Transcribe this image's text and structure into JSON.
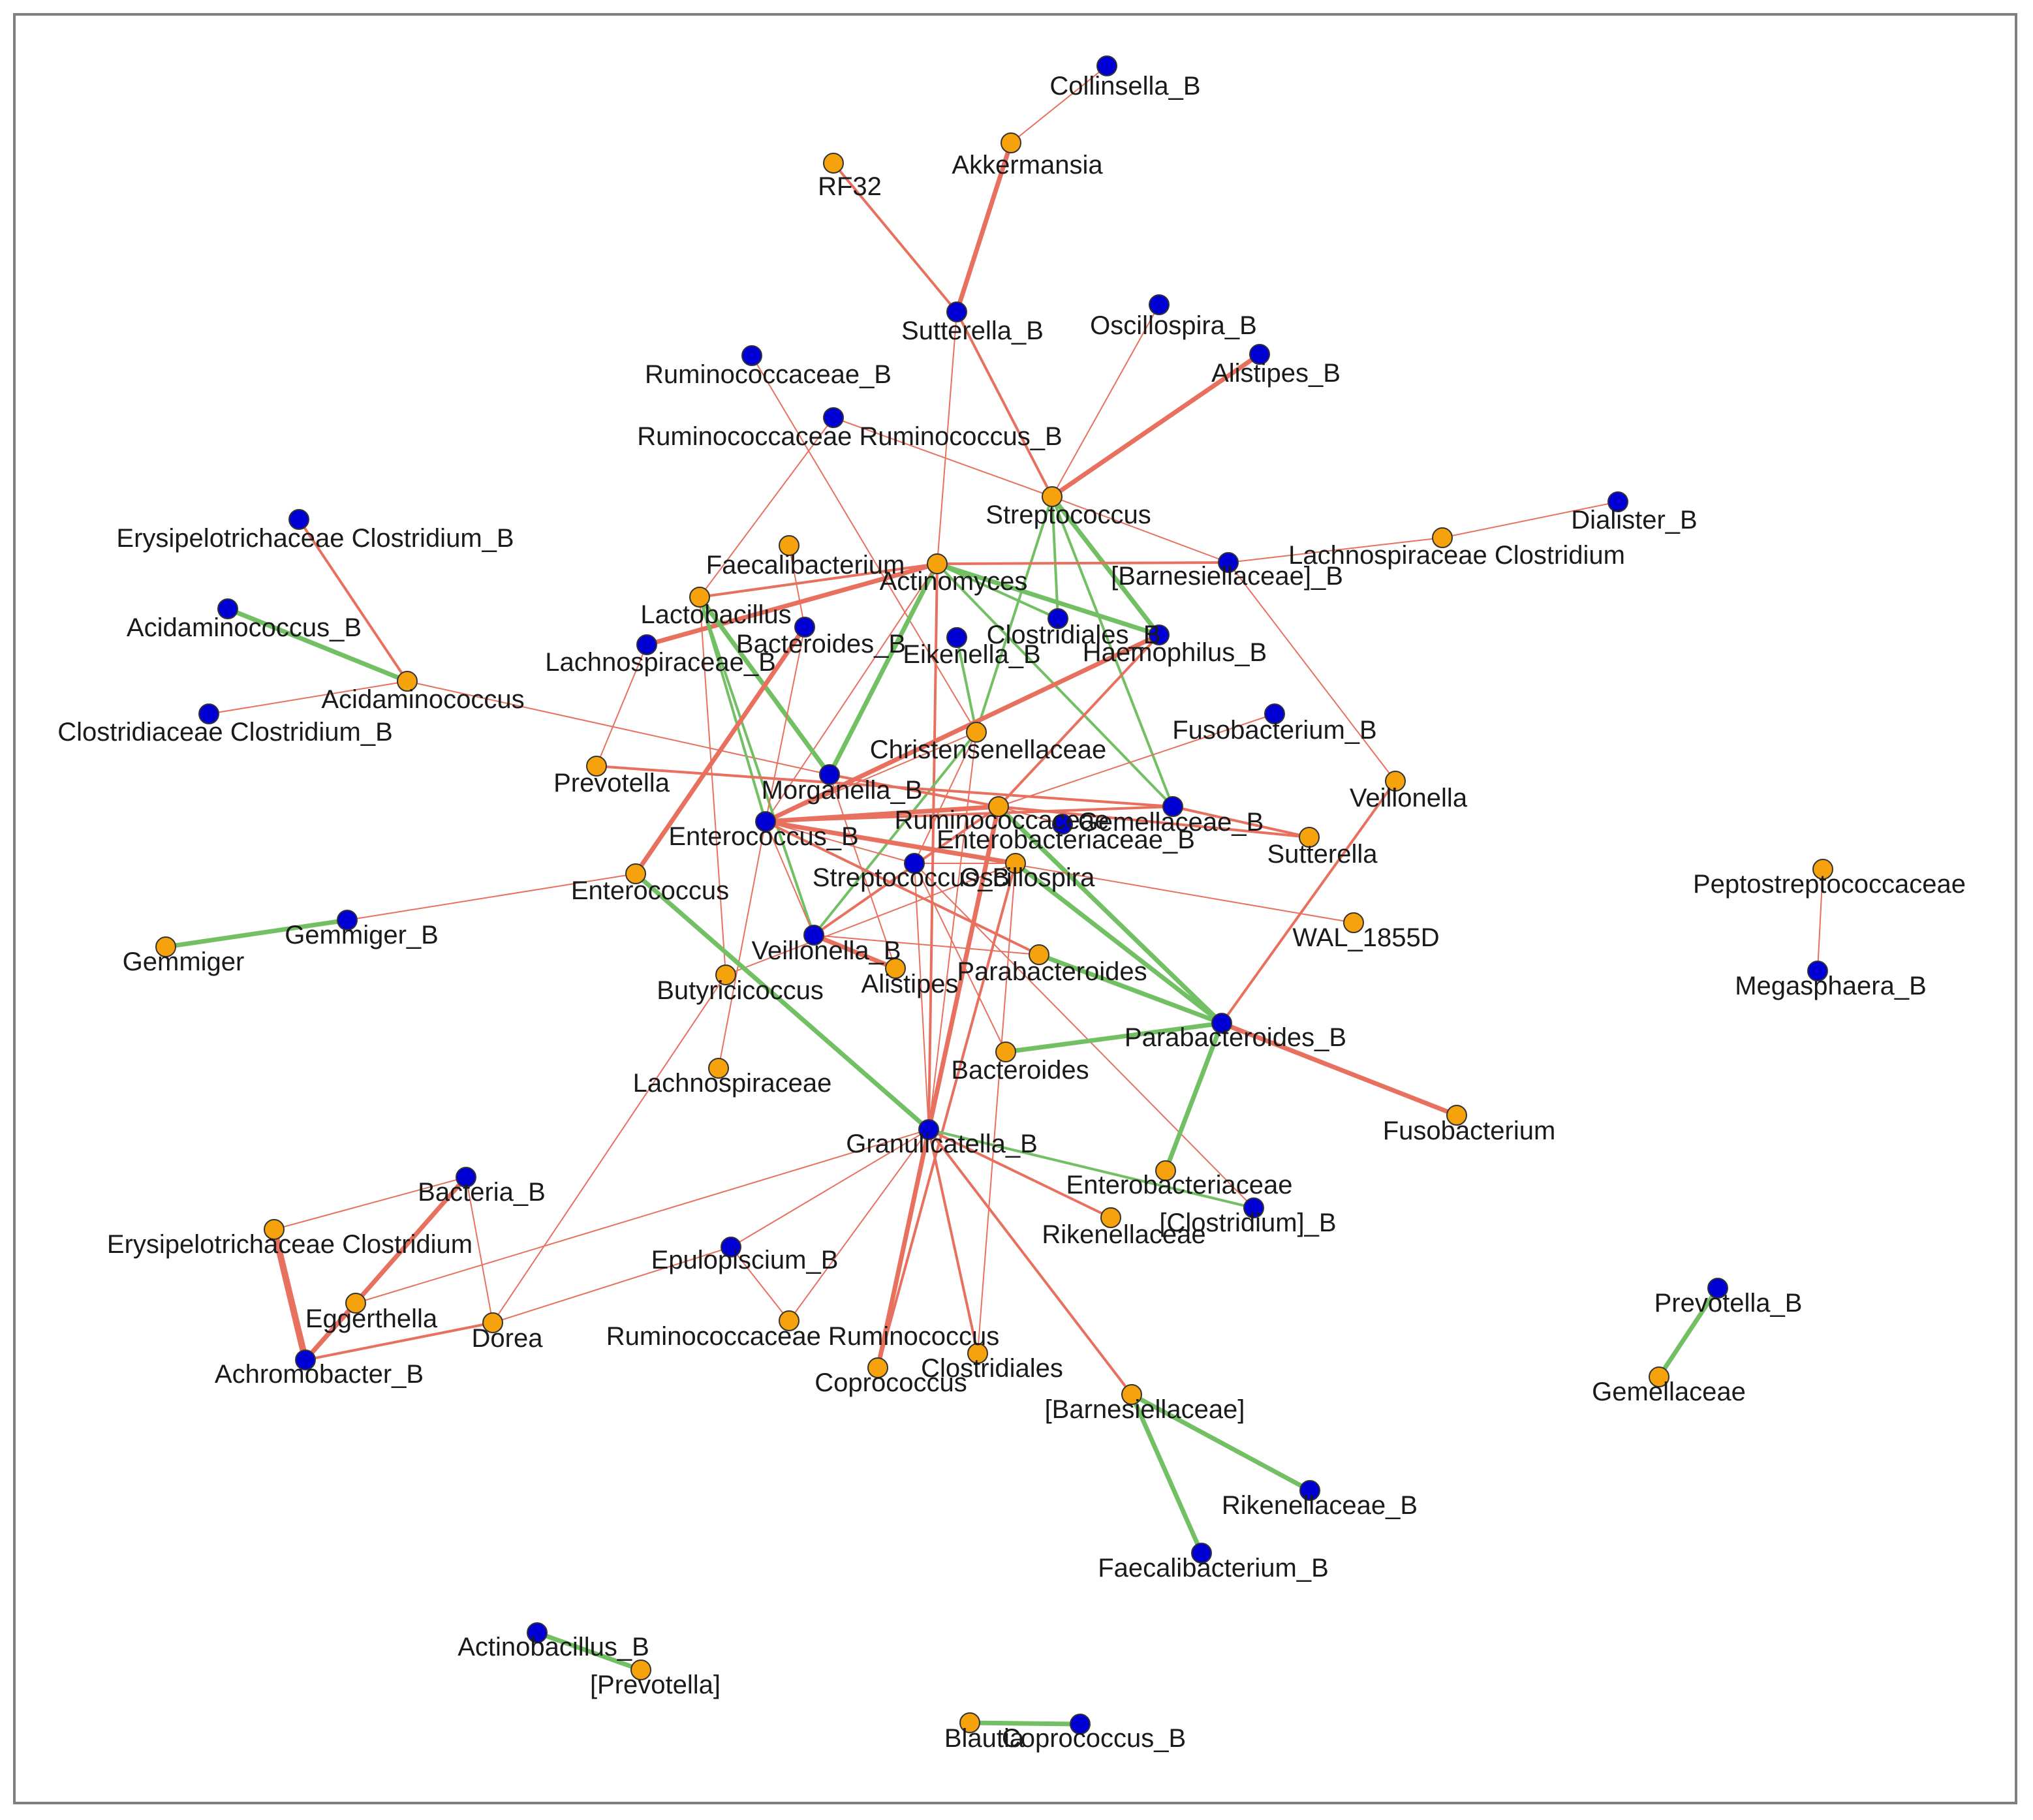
{
  "colors": {
    "positive": "#e8705f",
    "negative": "#72bf64",
    "group_A": "#f5a20c",
    "group_B": "#0000d4",
    "frame": "#808080"
  },
  "nodes": [
    {
      "id": "collinsella_b",
      "label": "Collinsella_B",
      "group": "B"
    },
    {
      "id": "akkermansia",
      "label": "Akkermansia",
      "group": "A"
    },
    {
      "id": "rf32",
      "label": "RF32",
      "group": "A"
    },
    {
      "id": "sutterella_b",
      "label": "Sutterella_B",
      "group": "B"
    },
    {
      "id": "oscillospira_b",
      "label": "Oscillospira_B",
      "group": "B"
    },
    {
      "id": "alistipes_b",
      "label": "Alistipes_B",
      "group": "B"
    },
    {
      "id": "ruminococcaceae_b",
      "label": "Ruminococcaceae_B",
      "group": "B"
    },
    {
      "id": "ruminococcaceae_ruminococcus_b",
      "label": "Ruminococcaceae Ruminococcus_B",
      "group": "B"
    },
    {
      "id": "streptococcus",
      "label": "Streptococcus",
      "group": "A"
    },
    {
      "id": "dialister_b",
      "label": "Dialister_B",
      "group": "B"
    },
    {
      "id": "lachnospiraceae_clostridium",
      "label": "Lachnospiraceae Clostridium",
      "group": "A"
    },
    {
      "id": "barnesiellaceae_b",
      "label": "[Barnesiellaceae]_B",
      "group": "B"
    },
    {
      "id": "erysipelotrichaceae_clostridium_b",
      "label": "Erysipelotrichaceae Clostridium_B",
      "group": "B"
    },
    {
      "id": "faecalibacterium",
      "label": "Faecalibacterium",
      "group": "A"
    },
    {
      "id": "actinomyces",
      "label": "Actinomyces",
      "group": "A"
    },
    {
      "id": "acidaminococcus_b",
      "label": "Acidaminococcus_B",
      "group": "B"
    },
    {
      "id": "lactobacillus",
      "label": "Lactobacillus",
      "group": "A"
    },
    {
      "id": "bacteroides_b",
      "label": "Bacteroides_B",
      "group": "B"
    },
    {
      "id": "clostridiales_b",
      "label": "Clostridiales_B",
      "group": "B"
    },
    {
      "id": "eikenella_b",
      "label": "Eikenella_B",
      "group": "B"
    },
    {
      "id": "haemophilus_b",
      "label": "Haemophilus_B",
      "group": "B"
    },
    {
      "id": "lachnospiraceae_b",
      "label": "Lachnospiraceae_B",
      "group": "B"
    },
    {
      "id": "acidaminococcus",
      "label": "Acidaminococcus",
      "group": "A"
    },
    {
      "id": "clostridiaceae_clostridium_b",
      "label": "Clostridiaceae Clostridium_B",
      "group": "B"
    },
    {
      "id": "fusobacterium_b",
      "label": "Fusobacterium_B",
      "group": "B"
    },
    {
      "id": "christensenellaceae",
      "label": "Christensenellaceae",
      "group": "A"
    },
    {
      "id": "prevotella",
      "label": "Prevotella",
      "group": "A"
    },
    {
      "id": "morganella_b",
      "label": "Morganella_B",
      "group": "B"
    },
    {
      "id": "veillonella",
      "label": "Veillonella",
      "group": "A"
    },
    {
      "id": "ruminococcaceae",
      "label": "Ruminococcaceae",
      "group": "A"
    },
    {
      "id": "gemellaceae_b",
      "label": "Gemellaceae_B",
      "group": "B"
    },
    {
      "id": "sutterella",
      "label": "Sutterella",
      "group": "A"
    },
    {
      "id": "enterococcus_b",
      "label": "Enterococcus_B",
      "group": "B"
    },
    {
      "id": "enterobacteriaceae_b",
      "label": "Enterobacteriaceae_B",
      "group": "B"
    },
    {
      "id": "peptostreptococcaceae",
      "label": "Peptostreptococcaceae",
      "group": "A"
    },
    {
      "id": "streptococcus_b",
      "label": "Streptococcus_B",
      "group": "B"
    },
    {
      "id": "oscillospira",
      "label": "Oscillospira",
      "group": "A"
    },
    {
      "id": "enterococcus",
      "label": "Enterococcus",
      "group": "A"
    },
    {
      "id": "wal_1855d",
      "label": "WAL_1855D",
      "group": "A"
    },
    {
      "id": "megasphaera_b",
      "label": "Megasphaera_B",
      "group": "B"
    },
    {
      "id": "gemmiger_b",
      "label": "Gemmiger_B",
      "group": "B"
    },
    {
      "id": "gemmiger",
      "label": "Gemmiger",
      "group": "A"
    },
    {
      "id": "veillonella_b",
      "label": "Veillonella_B",
      "group": "B"
    },
    {
      "id": "alistipes",
      "label": "Alistipes",
      "group": "A"
    },
    {
      "id": "parabacteroides",
      "label": "Parabacteroides",
      "group": "A"
    },
    {
      "id": "butyricicoccus",
      "label": "Butyricicoccus",
      "group": "A"
    },
    {
      "id": "parabacteroides_b",
      "label": "Parabacteroides_B",
      "group": "B"
    },
    {
      "id": "bacteroides",
      "label": "Bacteroides",
      "group": "A"
    },
    {
      "id": "lachnospiraceae",
      "label": "Lachnospiraceae",
      "group": "A"
    },
    {
      "id": "fusobacterium",
      "label": "Fusobacterium",
      "group": "A"
    },
    {
      "id": "granulicatella_b",
      "label": "Granulicatella_B",
      "group": "B"
    },
    {
      "id": "enterobacteriaceae",
      "label": "Enterobacteriaceae",
      "group": "A"
    },
    {
      "id": "bacteria_b",
      "label": "Bacteria_B",
      "group": "B"
    },
    {
      "id": "clostridium_b",
      "label": "[Clostridium]_B",
      "group": "B"
    },
    {
      "id": "rikenellaceae",
      "label": "Rikenellaceae",
      "group": "A"
    },
    {
      "id": "erysipelotrichaceae_clostridium",
      "label": "Erysipelotrichaceae Clostridium",
      "group": "A"
    },
    {
      "id": "epulopiscium_b",
      "label": "Epulopiscium_B",
      "group": "B"
    },
    {
      "id": "prevotella_b",
      "label": "Prevotella_B",
      "group": "B"
    },
    {
      "id": "eggerthella",
      "label": "Eggerthella",
      "group": "A"
    },
    {
      "id": "dorea",
      "label": "Dorea",
      "group": "A"
    },
    {
      "id": "ruminococcaceae_ruminococcus",
      "label": "Ruminococcaceae Ruminococcus",
      "group": "A"
    },
    {
      "id": "gemellaceae",
      "label": "Gemellaceae",
      "group": "A"
    },
    {
      "id": "achromobacter_b",
      "label": "Achromobacter_B",
      "group": "B"
    },
    {
      "id": "clostridiales",
      "label": "Clostridiales",
      "group": "A"
    },
    {
      "id": "coprococcus",
      "label": "Coprococcus",
      "group": "A"
    },
    {
      "id": "barnesiellaceae",
      "label": "[Barnesiellaceae]",
      "group": "A"
    },
    {
      "id": "rikenellaceae_b",
      "label": "Rikenellaceae_B",
      "group": "B"
    },
    {
      "id": "faecalibacterium_b",
      "label": "Faecalibacterium_B",
      "group": "B"
    },
    {
      "id": "actinobacillus_b",
      "label": "Actinobacillus_B",
      "group": "B"
    },
    {
      "id": "prevotella_bracket",
      "label": "[Prevotella]",
      "group": "A"
    },
    {
      "id": "blautia",
      "label": "Blautia",
      "group": "A"
    },
    {
      "id": "coprococcus_b",
      "label": "Coprococcus_B",
      "group": "B"
    }
  ],
  "edges": [
    [
      "collinsella_b",
      "akkermansia",
      "pos",
      1
    ],
    [
      "akkermansia",
      "sutterella_b",
      "pos",
      3
    ],
    [
      "rf32",
      "sutterella_b",
      "pos",
      2
    ],
    [
      "sutterella_b",
      "streptococcus",
      "pos",
      2
    ],
    [
      "sutterella_b",
      "actinomyces",
      "pos",
      1
    ],
    [
      "oscillospira_b",
      "streptococcus",
      "pos",
      1
    ],
    [
      "alistipes_b",
      "streptococcus",
      "pos",
      3
    ],
    [
      "ruminococcaceae_b",
      "christensenellaceae",
      "pos",
      1
    ],
    [
      "ruminococcaceae_ruminococcus_b",
      "streptococcus",
      "pos",
      1
    ],
    [
      "ruminococcaceae_ruminococcus_b",
      "lactobacillus",
      "pos",
      1
    ],
    [
      "streptococcus",
      "barnesiellaceae_b",
      "pos",
      1
    ],
    [
      "streptococcus",
      "clostridiales_b",
      "neg",
      2
    ],
    [
      "streptococcus",
      "haemophilus_b",
      "neg",
      3
    ],
    [
      "streptococcus",
      "christensenellaceae",
      "neg",
      2
    ],
    [
      "streptococcus",
      "gemellaceae_b",
      "neg",
      2
    ],
    [
      "dialister_b",
      "lachnospiraceae_clostridium",
      "pos",
      1
    ],
    [
      "lachnospiraceae_clostridium",
      "barnesiellaceae_b",
      "pos",
      1
    ],
    [
      "barnesiellaceae_b",
      "actinomyces",
      "pos",
      2
    ],
    [
      "barnesiellaceae_b",
      "veillonella",
      "pos",
      1
    ],
    [
      "erysipelotrichaceae_clostridium_b",
      "acidaminococcus",
      "pos",
      2
    ],
    [
      "acidaminococcus_b",
      "acidaminococcus",
      "neg",
      3
    ],
    [
      "clostridiaceae_clostridium_b",
      "acidaminococcus",
      "pos",
      1
    ],
    [
      "acidaminococcus",
      "morganella_b",
      "pos",
      1
    ],
    [
      "faecalibacterium",
      "bacteroides_b",
      "pos",
      1
    ],
    [
      "actinomyces",
      "lactobacillus",
      "pos",
      2
    ],
    [
      "actinomyces",
      "lachnospiraceae_b",
      "pos",
      3
    ],
    [
      "actinomyces",
      "haemophilus_b",
      "neg",
      3
    ],
    [
      "actinomyces",
      "clostridiales_b",
      "neg",
      2
    ],
    [
      "actinomyces",
      "morganella_b",
      "neg",
      3
    ],
    [
      "actinomyces",
      "granulicatella_b",
      "pos",
      2
    ],
    [
      "actinomyces",
      "gemellaceae_b",
      "neg",
      2
    ],
    [
      "actinomyces",
      "enterococcus_b",
      "pos",
      1
    ],
    [
      "lactobacillus",
      "morganella_b",
      "neg",
      3
    ],
    [
      "lactobacillus",
      "veillonella_b",
      "neg",
      2
    ],
    [
      "lactobacillus",
      "enterococcus_b",
      "neg",
      2
    ],
    [
      "lactobacillus",
      "butyricicoccus",
      "pos",
      1
    ],
    [
      "lachnospiraceae_b",
      "prevotella",
      "pos",
      1
    ],
    [
      "bacteroides_b",
      "enterococcus",
      "pos",
      3
    ],
    [
      "bacteroides_b",
      "enterococcus_b",
      "pos",
      1
    ],
    [
      "eikenella_b",
      "christensenellaceae",
      "neg",
      2
    ],
    [
      "haemophilus_b",
      "enterococcus_b",
      "pos",
      3
    ],
    [
      "haemophilus_b",
      "ruminococcaceae",
      "pos",
      2
    ],
    [
      "fusobacterium_b",
      "ruminococcaceae",
      "pos",
      1
    ],
    [
      "christensenellaceae",
      "enterococcus_b",
      "pos",
      1
    ],
    [
      "christensenellaceae",
      "streptococcus_b",
      "pos",
      1
    ],
    [
      "christensenellaceae",
      "veillonella_b",
      "neg",
      2
    ],
    [
      "christensenellaceae",
      "granulicatella_b",
      "pos",
      1
    ],
    [
      "prevotella",
      "gemellaceae_b",
      "pos",
      2
    ],
    [
      "morganella_b",
      "ruminococcaceae",
      "pos",
      2
    ],
    [
      "morganella_b",
      "alistipes",
      "pos",
      1
    ],
    [
      "veillonella",
      "parabacteroides_b",
      "pos",
      2
    ],
    [
      "ruminococcaceae",
      "enterococcus_b",
      "pos",
      3
    ],
    [
      "ruminococcaceae",
      "sutterella",
      "pos",
      2
    ],
    [
      "ruminococcaceae",
      "enterobacteriaceae_b",
      "pos",
      1
    ],
    [
      "ruminococcaceae",
      "granulicatella_b",
      "pos",
      3
    ],
    [
      "ruminococcaceae",
      "parabacteroides_b",
      "neg",
      3
    ],
    [
      "ruminococcaceae",
      "veillonella_b",
      "pos",
      2
    ],
    [
      "gemellaceae_b",
      "enterococcus_b",
      "pos",
      2
    ],
    [
      "gemellaceae_b",
      "sutterella",
      "pos",
      2
    ],
    [
      "enterococcus_b",
      "oscillospira",
      "pos",
      3
    ],
    [
      "enterococcus_b",
      "wal_1855d",
      "pos",
      1
    ],
    [
      "enterococcus_b",
      "veillonella_b",
      "pos",
      1
    ],
    [
      "enterococcus_b",
      "lachnospiraceae",
      "pos",
      1
    ],
    [
      "enterococcus_b",
      "parabacteroides",
      "pos",
      2
    ],
    [
      "enterococcus_b",
      "streptococcus_b",
      "pos",
      1
    ],
    [
      "streptococcus_b",
      "oscillospira",
      "pos",
      1
    ],
    [
      "streptococcus_b",
      "granulicatella_b",
      "pos",
      1
    ],
    [
      "streptococcus_b",
      "bacteroides",
      "pos",
      1
    ],
    [
      "streptococcus_b",
      "clostridium_b",
      "pos",
      1
    ],
    [
      "oscillospira",
      "parabacteroides_b",
      "neg",
      3
    ],
    [
      "oscillospira",
      "coprococcus",
      "pos",
      2
    ],
    [
      "oscillospira",
      "clostridiales",
      "pos",
      1
    ],
    [
      "oscillospira",
      "butyricicoccus",
      "pos",
      1
    ],
    [
      "peptostreptococcaceae",
      "megasphaera_b",
      "pos",
      1
    ],
    [
      "enterococcus",
      "gemmiger_b",
      "pos",
      1
    ],
    [
      "enterococcus",
      "granulicatella_b",
      "neg",
      3
    ],
    [
      "gemmiger",
      "gemmiger_b",
      "neg",
      3
    ],
    [
      "veillonella_b",
      "alistipes",
      "pos",
      3
    ],
    [
      "veillonella_b",
      "parabacteroides",
      "pos",
      1
    ],
    [
      "parabacteroides",
      "parabacteroides_b",
      "neg",
      3
    ],
    [
      "parabacteroides_b",
      "bacteroides",
      "neg",
      3
    ],
    [
      "parabacteroides_b",
      "fusobacterium",
      "pos",
      3
    ],
    [
      "parabacteroides_b",
      "enterobacteriaceae",
      "neg",
      3
    ],
    [
      "butyricicoccus",
      "dorea",
      "pos",
      1
    ],
    [
      "granulicatella_b",
      "rikenellaceae",
      "pos",
      2
    ],
    [
      "granulicatella_b",
      "clostridium_b",
      "neg",
      2
    ],
    [
      "granulicatella_b",
      "coprococcus",
      "pos",
      3
    ],
    [
      "granulicatella_b",
      "clostridiales",
      "pos",
      2
    ],
    [
      "granulicatella_b",
      "barnesiellaceae",
      "pos",
      2
    ],
    [
      "granulicatella_b",
      "ruminococcaceae_ruminococcus",
      "pos",
      1
    ],
    [
      "granulicatella_b",
      "epulopiscium_b",
      "pos",
      1
    ],
    [
      "granulicatella_b",
      "eggerthella",
      "pos",
      1
    ],
    [
      "bacteria_b",
      "erysipelotrichaceae_clostridium",
      "pos",
      1
    ],
    [
      "bacteria_b",
      "achromobacter_b",
      "pos",
      3
    ],
    [
      "bacteria_b",
      "dorea",
      "pos",
      1
    ],
    [
      "erysipelotrichaceae_clostridium",
      "achromobacter_b",
      "pos",
      4
    ],
    [
      "eggerthella",
      "achromobacter_b",
      "pos",
      3
    ],
    [
      "achromobacter_b",
      "dorea",
      "pos",
      2
    ],
    [
      "dorea",
      "epulopiscium_b",
      "pos",
      1
    ],
    [
      "epulopiscium_b",
      "ruminococcaceae_ruminococcus",
      "pos",
      1
    ],
    [
      "barnesiellaceae",
      "rikenellaceae_b",
      "neg",
      3
    ],
    [
      "barnesiellaceae",
      "faecalibacterium_b",
      "neg",
      3
    ],
    [
      "prevotella_b",
      "gemellaceae",
      "neg",
      3
    ],
    [
      "actinobacillus_b",
      "prevotella_bracket",
      "neg",
      3
    ],
    [
      "blautia",
      "coprococcus_b",
      "neg",
      3
    ]
  ]
}
